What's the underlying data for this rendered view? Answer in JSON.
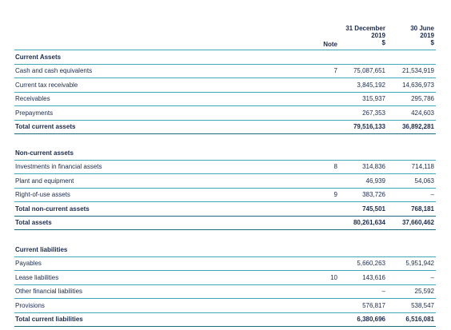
{
  "header": {
    "note": "Note",
    "columns": [
      [
        "31 December",
        "2019",
        "$"
      ],
      [
        "30 June",
        "2019",
        "$"
      ]
    ]
  },
  "sections": [
    {
      "title": "Current Assets",
      "rows": [
        {
          "label": "Cash and cash equivalents",
          "note": "7",
          "values": [
            "75,087,651",
            "21,534,919"
          ]
        },
        {
          "label": "Current tax receivable",
          "note": null,
          "values": [
            "3,845,192",
            "14,636,973"
          ]
        },
        {
          "label": "Receivables",
          "note": null,
          "values": [
            "315,937",
            "295,786"
          ]
        },
        {
          "label": "Prepayments",
          "note": null,
          "values": [
            "267,353",
            "424,603"
          ]
        },
        {
          "label": "Total current assets",
          "note": null,
          "values": [
            "79,516,133",
            "36,892,281"
          ],
          "total": true
        }
      ]
    },
    {
      "title": "Non-current assets",
      "rows": [
        {
          "label": "Investments in financial assets",
          "note": "8",
          "values": [
            "314,836",
            "714,118"
          ]
        },
        {
          "label": "Plant and equipment",
          "note": null,
          "values": [
            "46,939",
            "54,063"
          ]
        },
        {
          "label": "Right-of-use assets",
          "note": "9",
          "values": [
            "383,726",
            "–"
          ]
        },
        {
          "label": "Total non-current assets",
          "note": null,
          "values": [
            "745,501",
            "768,181"
          ],
          "total": true
        },
        {
          "label": "Total assets",
          "note": null,
          "values": [
            "80,261,634",
            "37,660,462"
          ],
          "total": true
        }
      ]
    },
    {
      "title": "Current liabilities",
      "rows": [
        {
          "label": "Payables",
          "note": null,
          "values": [
            "5,660,263",
            "5,951,942"
          ]
        },
        {
          "label": "Lease liabilities",
          "note": "10",
          "values": [
            "143,616",
            "–"
          ]
        },
        {
          "label": "Other financial liabilities",
          "note": null,
          "values": [
            "–",
            "25,592"
          ]
        },
        {
          "label": "Provisions",
          "note": null,
          "values": [
            "576,817",
            "538,547"
          ]
        },
        {
          "label": "Total current liabilities",
          "note": null,
          "values": [
            "6,380,696",
            "6,516,081"
          ],
          "total": true
        }
      ]
    }
  ]
}
